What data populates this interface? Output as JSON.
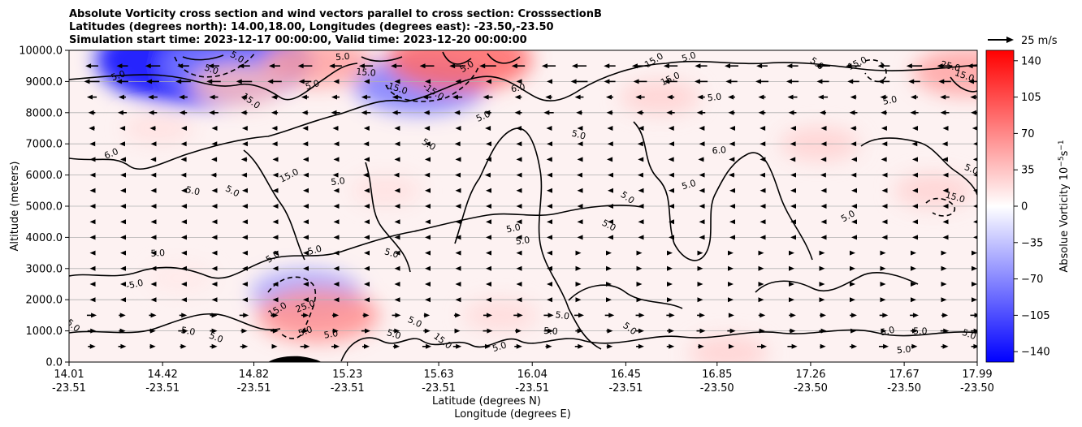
{
  "chart_data": {
    "type": "heatmap",
    "title_lines": [
      "Absolute Vorticity cross section and wind vectors parallel to cross section: CrosssectionB",
      "Latitudes (degrees north): 14.00,18.00, Longitudes (degrees east): -23.50,-23.50",
      "Simulation start time: 2023-12-17 00:00:00, Valid time: 2023-12-20 00:00:00"
    ],
    "xlabel_lines": [
      "Latitude (degrees N)",
      "Longitude (degrees E)"
    ],
    "ylabel": "Altitude (meters)",
    "xlim": [
      14.01,
      17.99
    ],
    "ylim": [
      0,
      10000
    ],
    "x_ticks": [
      {
        "lat": "14.01",
        "lon": "-23.51"
      },
      {
        "lat": "14.42",
        "lon": "-23.51"
      },
      {
        "lat": "14.82",
        "lon": "-23.51"
      },
      {
        "lat": "15.23",
        "lon": "-23.51"
      },
      {
        "lat": "15.63",
        "lon": "-23.51"
      },
      {
        "lat": "16.04",
        "lon": "-23.51"
      },
      {
        "lat": "16.45",
        "lon": "-23.51"
      },
      {
        "lat": "16.85",
        "lon": "-23.50"
      },
      {
        "lat": "17.26",
        "lon": "-23.50"
      },
      {
        "lat": "17.67",
        "lon": "-23.50"
      },
      {
        "lat": "17.99",
        "lon": "-23.50"
      }
    ],
    "y_ticks": [
      "0.0",
      "1000.0",
      "2000.0",
      "3000.0",
      "4000.0",
      "5000.0",
      "6000.0",
      "7000.0",
      "8000.0",
      "9000.0",
      "10000.0"
    ],
    "grid": "horizontal",
    "colorbar": {
      "label": "Absolue Vorticity 10",
      "label_units": "−5",
      "label_units2": "s",
      "label_units3": "−1",
      "range": [
        -150,
        150
      ],
      "ticks": [
        "140",
        "105",
        "70",
        "35",
        "0",
        "−35",
        "−70",
        "−105",
        "−140"
      ],
      "tick_values": [
        140,
        105,
        70,
        35,
        0,
        -35,
        -70,
        -105,
        -140
      ],
      "colormap": [
        "#0000ff",
        "#ffffff",
        "#ff0000"
      ]
    },
    "quiver_key": {
      "label": "25 m/s",
      "speed": 25
    },
    "contour_labels": [
      {
        "text": "5.0",
        "lat": 14.23,
        "alt": 9100
      },
      {
        "text": "5.0",
        "lat": 14.4,
        "alt": 3400
      },
      {
        "text": "-5.0",
        "lat": 14.3,
        "alt": 2400
      },
      {
        "text": "5.0",
        "lat": 14.02,
        "alt": 1100
      },
      {
        "text": "6.0",
        "lat": 14.2,
        "alt": 6600
      },
      {
        "text": "5.0",
        "lat": 14.55,
        "alt": 5400
      },
      {
        "text": "5.0",
        "lat": 14.72,
        "alt": 5400
      },
      {
        "text": "15.0",
        "lat": 14.98,
        "alt": 5900
      },
      {
        "text": "5.0",
        "lat": 15.19,
        "alt": 5700
      },
      {
        "text": "5.0",
        "lat": 14.91,
        "alt": 3300
      },
      {
        "text": "5.0",
        "lat": 15.09,
        "alt": 3500
      },
      {
        "text": "15.0",
        "lat": 14.93,
        "alt": 1600
      },
      {
        "text": "25.0",
        "lat": 15.05,
        "alt": 1700
      },
      {
        "text": "5.0",
        "lat": 15.05,
        "alt": 900
      },
      {
        "text": "5.0",
        "lat": 15.16,
        "alt": 800
      },
      {
        "text": "5.0",
        "lat": 14.53,
        "alt": 900
      },
      {
        "text": "5.0",
        "lat": 14.65,
        "alt": 700
      },
      {
        "text": "15.0",
        "lat": 14.8,
        "alt": 8300
      },
      {
        "text": "5.0",
        "lat": 15.08,
        "alt": 8800
      },
      {
        "text": "15.0",
        "lat": 15.31,
        "alt": 9200
      },
      {
        "text": "-15.0",
        "lat": 15.44,
        "alt": 8700
      },
      {
        "text": "-15.0",
        "lat": 15.6,
        "alt": 8600
      },
      {
        "text": "5.0",
        "lat": 15.58,
        "alt": 6900
      },
      {
        "text": "5.0",
        "lat": 15.83,
        "alt": 7800
      },
      {
        "text": "6.0",
        "lat": 15.98,
        "alt": 8700
      },
      {
        "text": "5.0",
        "lat": 15.96,
        "alt": 4200
      },
      {
        "text": "5.0",
        "lat": 16.0,
        "alt": 3800
      },
      {
        "text": "5.0",
        "lat": 15.42,
        "alt": 3400
      },
      {
        "text": "5.0",
        "lat": 15.52,
        "alt": 1200
      },
      {
        "text": "15.0",
        "lat": 15.64,
        "alt": 600
      },
      {
        "text": "5.0",
        "lat": 15.43,
        "alt": 800
      },
      {
        "text": "5.0",
        "lat": 16.17,
        "alt": 1400
      },
      {
        "text": "5.0",
        "lat": 15.9,
        "alt": 400
      },
      {
        "text": "5.0",
        "lat": 16.12,
        "alt": 900
      },
      {
        "text": "5.0",
        "lat": 16.24,
        "alt": 7200
      },
      {
        "text": "5.0",
        "lat": 16.45,
        "alt": 5200
      },
      {
        "text": "5.0",
        "lat": 16.37,
        "alt": 4300
      },
      {
        "text": "5.0",
        "lat": 16.46,
        "alt": 1000
      },
      {
        "text": "15.0",
        "lat": 16.58,
        "alt": 9600
      },
      {
        "text": "15.0",
        "lat": 16.65,
        "alt": 9000
      },
      {
        "text": "5.0",
        "lat": 16.73,
        "alt": 9700
      },
      {
        "text": "5.0",
        "lat": 16.73,
        "alt": 5600
      },
      {
        "text": "5.0",
        "lat": 16.84,
        "alt": 8400
      },
      {
        "text": "6.0",
        "lat": 16.86,
        "alt": 6700
      },
      {
        "text": "5.0",
        "lat": 17.28,
        "alt": 9500
      },
      {
        "text": "15.0",
        "lat": 17.47,
        "alt": 9500
      },
      {
        "text": "5.0",
        "lat": 17.61,
        "alt": 8300
      },
      {
        "text": "5.0",
        "lat": 17.43,
        "alt": 4600
      },
      {
        "text": "5.0",
        "lat": 17.6,
        "alt": 900
      },
      {
        "text": "5.0",
        "lat": 17.74,
        "alt": 900
      },
      {
        "text": "5.0",
        "lat": 17.67,
        "alt": 300
      },
      {
        "text": "15.0",
        "lat": 17.89,
        "alt": 5200
      },
      {
        "text": "5.0",
        "lat": 17.96,
        "alt": 6100
      },
      {
        "text": "5.0",
        "lat": 17.95,
        "alt": 800
      },
      {
        "text": "25.0",
        "lat": 17.87,
        "alt": 9400
      },
      {
        "text": "15.0",
        "lat": 17.93,
        "alt": 9100
      },
      {
        "text": "5.0",
        "lat": 14.63,
        "alt": 9300
      },
      {
        "text": "5.0",
        "lat": 14.74,
        "alt": 9700
      },
      {
        "text": "5.0",
        "lat": 15.21,
        "alt": 9700
      },
      {
        "text": "5.0",
        "lat": 15.76,
        "alt": 9400
      }
    ],
    "vorticity_blobs": [
      {
        "lat": 14.6,
        "alt": 9700,
        "value": -70
      },
      {
        "lat": 14.72,
        "alt": 9500,
        "value": -35
      },
      {
        "lat": 15.55,
        "alt": 8900,
        "value": -35
      },
      {
        "lat": 15.05,
        "alt": 2200,
        "value": -25
      },
      {
        "lat": 14.75,
        "alt": 8900,
        "value": 18
      },
      {
        "lat": 15.1,
        "alt": 9600,
        "value": 25
      },
      {
        "lat": 15.72,
        "alt": 9700,
        "value": 40
      },
      {
        "lat": 15.1,
        "alt": 1500,
        "value": 30
      },
      {
        "lat": 17.95,
        "alt": 9300,
        "value": 25
      },
      {
        "lat": 16.6,
        "alt": 8500,
        "value": 12
      },
      {
        "lat": 17.3,
        "alt": 7000,
        "value": 12
      },
      {
        "lat": 17.8,
        "alt": 5500,
        "value": 12
      },
      {
        "lat": 15.4,
        "alt": 5500,
        "value": 8
      },
      {
        "lat": 14.4,
        "alt": 7500,
        "value": 8
      },
      {
        "lat": 14.5,
        "alt": 2700,
        "value": 6
      },
      {
        "lat": 15.9,
        "alt": 1500,
        "value": 10
      },
      {
        "lat": 16.9,
        "alt": 300,
        "value": 12
      }
    ]
  }
}
